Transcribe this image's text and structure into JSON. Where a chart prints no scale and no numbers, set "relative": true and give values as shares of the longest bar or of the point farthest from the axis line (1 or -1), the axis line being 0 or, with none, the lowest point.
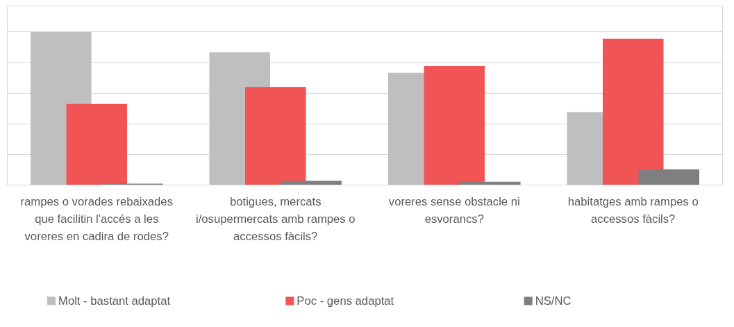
{
  "chart_data": {
    "type": "bar",
    "relative": true,
    "grid": "y",
    "legend": "bottom",
    "categories": [
      "rampes o vorades rebaixades que facilitin l'accés a les voreres en cadira de rodes?",
      "botigues, mercats i/osupermercats amb rampes o accessos fàcils?",
      "voreres sense obstacle ni esvorancs?",
      "habitatges amb rampes o accessos fàcils?"
    ],
    "series": [
      {
        "name": "Molt - bastant adaptat",
        "color": "#bfbfbf",
        "values": [
          1,
          0.867,
          0.733,
          0.476
        ]
      },
      {
        "name": "Poc - gens adaptat",
        "color": "#f05454",
        "values": [
          0.529,
          0.64,
          0.778,
          0.956
        ]
      },
      {
        "name": "NS/NC",
        "color": "#7f7f7f",
        "values": [
          0.009,
          0.027,
          0.022,
          0.102
        ]
      }
    ]
  }
}
